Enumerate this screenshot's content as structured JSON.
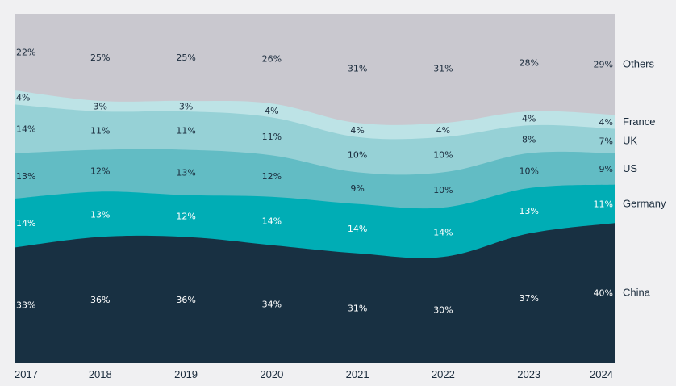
{
  "chart_data": {
    "type": "area",
    "stacking": "percent",
    "categories": [
      "2017",
      "2018",
      "2019",
      "2020",
      "2021",
      "2022",
      "2023",
      "2024"
    ],
    "series": [
      {
        "name": "China",
        "color": "#183042",
        "label_color": "#ffffff",
        "values": [
          33,
          36,
          36,
          34,
          31,
          30,
          37,
          40
        ],
        "labels": [
          "33%",
          "36%",
          "36%",
          "34%",
          "31%",
          "30%",
          "37%",
          "40%"
        ]
      },
      {
        "name": "Germany",
        "color": "#00adb5",
        "label_color": "#ffffff",
        "values": [
          14,
          13,
          12,
          14,
          14,
          14,
          13,
          11
        ],
        "labels": [
          "14%",
          "13%",
          "12%",
          "14%",
          "14%",
          "14%",
          "13%",
          "11%"
        ]
      },
      {
        "name": "US",
        "color": "#62bcc4",
        "label_color": "#1a2b3c",
        "values": [
          13,
          12,
          13,
          12,
          9,
          10,
          10,
          9
        ],
        "labels": [
          "13%",
          "12%",
          "13%",
          "12%",
          "9%",
          "10%",
          "10%",
          "9%"
        ]
      },
      {
        "name": "UK",
        "color": "#96d1d6",
        "label_color": "#1a2b3c",
        "values": [
          14,
          11,
          11,
          11,
          10,
          10,
          8,
          7
        ],
        "labels": [
          "14%",
          "11%",
          "11%",
          "11%",
          "10%",
          "10%",
          "8%",
          "7%"
        ]
      },
      {
        "name": "France",
        "color": "#bde3e6",
        "label_color": "#1a2b3c",
        "values": [
          4,
          3,
          3,
          4,
          4,
          4,
          4,
          4
        ],
        "labels": [
          "4%",
          "3%",
          "3%",
          "4%",
          "4%",
          "4%",
          "4%",
          "4%"
        ]
      },
      {
        "name": "Others",
        "color": "#c9c8cf",
        "label_color": "#1a2b3c",
        "values": [
          22,
          25,
          25,
          26,
          31,
          31,
          28,
          29
        ],
        "labels": [
          "22%",
          "25%",
          "25%",
          "26%",
          "31%",
          "31%",
          "28%",
          "29%"
        ]
      }
    ],
    "ylim": [
      0,
      100
    ],
    "grid": false,
    "legend": "right"
  }
}
